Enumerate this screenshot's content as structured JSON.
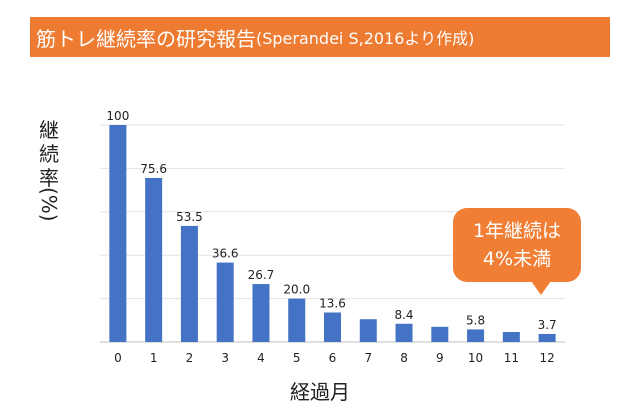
{
  "title": {
    "main": "筋トレ継続率の研究報告",
    "source": "(Sperandei S,2016より作成)"
  },
  "chart_data": {
    "type": "bar",
    "categories": [
      "0",
      "1",
      "2",
      "3",
      "4",
      "5",
      "6",
      "7",
      "8",
      "9",
      "10",
      "11",
      "12"
    ],
    "values": [
      100,
      75.6,
      53.5,
      36.6,
      26.7,
      20.0,
      13.6,
      10.5,
      8.4,
      7.0,
      5.8,
      4.6,
      3.7
    ],
    "data_labels": [
      "100",
      "75.6",
      "53.5",
      "36.6",
      "26.7",
      "20.0",
      "13.6",
      "",
      "8.4",
      "",
      "5.8",
      "",
      "3.7"
    ],
    "xlabel": "経過月",
    "ylabel_upright": "継続率",
    "ylabel_rotated": "(%)",
    "ylim": [
      0,
      100
    ],
    "grid": true,
    "bar_color": "#4472c4",
    "annotation": {
      "lines": [
        "1年継続は",
        "4%未満"
      ],
      "target_category": "12",
      "color": "#f07e34"
    }
  }
}
